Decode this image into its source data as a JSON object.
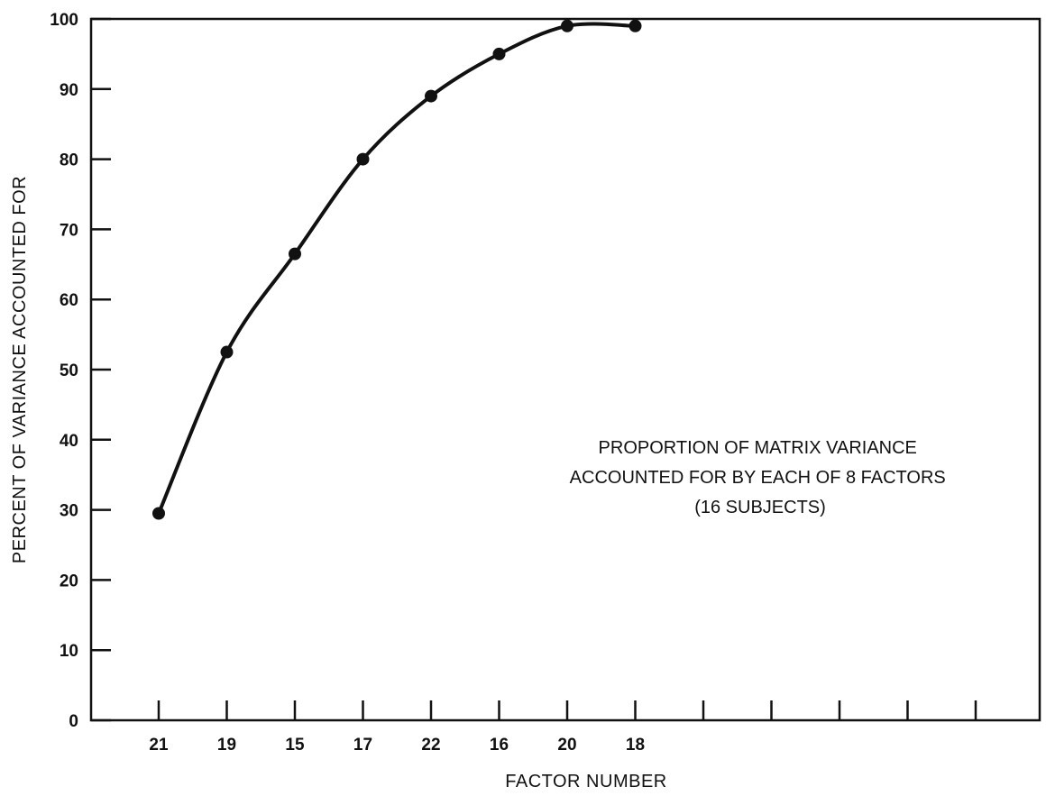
{
  "chart_data": {
    "type": "line",
    "title": "",
    "xlabel": "FACTOR NUMBER",
    "ylabel": "PERCENT OF VARIANCE ACCOUNTED FOR",
    "ylim": [
      0,
      100
    ],
    "yticks": [
      0,
      10,
      20,
      30,
      40,
      50,
      60,
      70,
      80,
      90,
      100
    ],
    "categories": [
      "21",
      "19",
      "15",
      "17",
      "22",
      "16",
      "20",
      "18"
    ],
    "total_slots": 13,
    "series": [
      {
        "values": [
          29.5,
          52.5,
          66.5,
          80,
          89,
          95,
          99,
          99
        ]
      }
    ],
    "annotation": {
      "lines": [
        "PROPORTION OF MATRIX VARIANCE",
        "ACCOUNTED FOR BY EACH OF 8 FACTORS",
        "(16 SUBJECTS)"
      ]
    },
    "grid": false,
    "legend": "none",
    "line_color": "#111111",
    "marker_color": "#111111"
  }
}
